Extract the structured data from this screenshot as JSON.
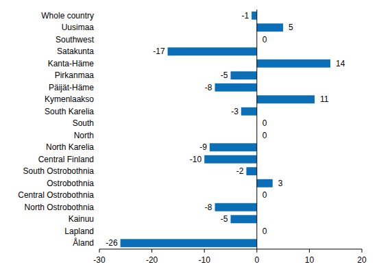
{
  "chart_data": {
    "type": "bar",
    "orientation": "horizontal",
    "categories": [
      "Whole country",
      "Uusimaa",
      "Southwest",
      "Satakunta",
      "Kanta-Häme",
      "Pirkanmaa",
      "Päijät-Häme",
      "Kymenlaakso",
      "South Karelia",
      "South",
      "North",
      "North Karelia",
      "Central Finland",
      "South Ostrobothnia",
      "Ostrobothnia",
      "Central Ostrobothnia",
      "North Ostrobothnia",
      "Kainuu",
      "Lapland",
      "Åland"
    ],
    "values": [
      -1,
      5,
      0,
      -17,
      14,
      -5,
      -8,
      11,
      -3,
      0,
      0,
      -9,
      -10,
      -2,
      3,
      0,
      -8,
      -5,
      0,
      -26
    ],
    "color": "#0b6fb8",
    "xlim": [
      -30,
      20
    ],
    "xticks": [
      -30,
      -20,
      -10,
      0,
      10,
      20
    ],
    "data_labels": true,
    "grid": false
  }
}
